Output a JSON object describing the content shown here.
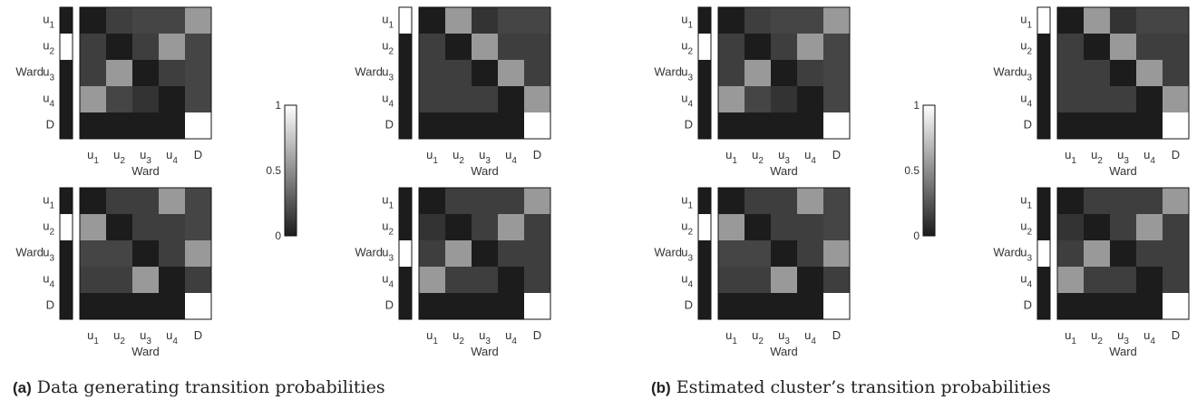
{
  "panel_labels": [
    {
      "tag": "(a)",
      "text": "Data generating transition probabilities"
    },
    {
      "tag": "(b)",
      "text": "Estimated cluster’s transition probabilities"
    }
  ],
  "chart_data": [
    {
      "type": "heatmap",
      "group": "a",
      "ylabel": "Ward",
      "xlabel": "Ward",
      "row_labels": [
        "u1",
        "u2",
        "u3",
        "u4",
        "D"
      ],
      "col_labels": [
        "u1",
        "u2",
        "u3",
        "u4",
        "D"
      ],
      "initial_probabilities": [
        0.0,
        1.0,
        0.0,
        0.0,
        0.0
      ],
      "values": [
        [
          0.0,
          0.15,
          0.18,
          0.18,
          0.55
        ],
        [
          0.15,
          0.0,
          0.15,
          0.55,
          0.18
        ],
        [
          0.15,
          0.55,
          0.0,
          0.15,
          0.18
        ],
        [
          0.55,
          0.18,
          0.1,
          0.0,
          0.18
        ],
        [
          0.0,
          0.0,
          0.0,
          0.0,
          1.0
        ]
      ]
    },
    {
      "type": "heatmap",
      "group": "a",
      "ylabel": "Ward",
      "xlabel": "Ward",
      "row_labels": [
        "u1",
        "u2",
        "u3",
        "u4",
        "D"
      ],
      "col_labels": [
        "u1",
        "u2",
        "u3",
        "u4",
        "D"
      ],
      "initial_probabilities": [
        1.0,
        0.0,
        0.0,
        0.0,
        0.0
      ],
      "values": [
        [
          0.0,
          0.55,
          0.1,
          0.18,
          0.18
        ],
        [
          0.15,
          0.0,
          0.55,
          0.15,
          0.15
        ],
        [
          0.15,
          0.15,
          0.0,
          0.55,
          0.15
        ],
        [
          0.15,
          0.15,
          0.15,
          0.0,
          0.55
        ],
        [
          0.0,
          0.0,
          0.0,
          0.0,
          1.0
        ]
      ]
    },
    {
      "type": "heatmap",
      "group": "a",
      "ylabel": "Ward",
      "xlabel": "Ward",
      "row_labels": [
        "u1",
        "u2",
        "u3",
        "u4",
        "D"
      ],
      "col_labels": [
        "u1",
        "u2",
        "u3",
        "u4",
        "D"
      ],
      "initial_probabilities": [
        0.0,
        1.0,
        0.0,
        0.0,
        0.0
      ],
      "values": [
        [
          0.0,
          0.15,
          0.15,
          0.55,
          0.18
        ],
        [
          0.55,
          0.0,
          0.15,
          0.15,
          0.18
        ],
        [
          0.18,
          0.18,
          0.0,
          0.15,
          0.55
        ],
        [
          0.15,
          0.15,
          0.55,
          0.0,
          0.15
        ],
        [
          0.0,
          0.0,
          0.0,
          0.0,
          1.0
        ]
      ]
    },
    {
      "type": "heatmap",
      "group": "a",
      "ylabel": "Ward",
      "xlabel": "Ward",
      "row_labels": [
        "u1",
        "u2",
        "u3",
        "u4",
        "D"
      ],
      "col_labels": [
        "u1",
        "u2",
        "u3",
        "u4",
        "D"
      ],
      "initial_probabilities": [
        0.0,
        0.0,
        1.0,
        0.0,
        0.0
      ],
      "values": [
        [
          0.0,
          0.15,
          0.15,
          0.15,
          0.55
        ],
        [
          0.1,
          0.0,
          0.15,
          0.55,
          0.15
        ],
        [
          0.15,
          0.55,
          0.0,
          0.15,
          0.15
        ],
        [
          0.55,
          0.15,
          0.15,
          0.0,
          0.15
        ],
        [
          0.0,
          0.0,
          0.0,
          0.0,
          1.0
        ]
      ]
    },
    {
      "type": "heatmap",
      "group": "b",
      "ylabel": "Ward",
      "xlabel": "Ward",
      "row_labels": [
        "u1",
        "u2",
        "u3",
        "u4",
        "D"
      ],
      "col_labels": [
        "u1",
        "u2",
        "u3",
        "u4",
        "D"
      ],
      "initial_probabilities": [
        0.0,
        1.0,
        0.0,
        0.0,
        0.0
      ],
      "values": [
        [
          0.0,
          0.15,
          0.18,
          0.18,
          0.55
        ],
        [
          0.15,
          0.0,
          0.15,
          0.55,
          0.18
        ],
        [
          0.15,
          0.55,
          0.0,
          0.15,
          0.18
        ],
        [
          0.55,
          0.18,
          0.1,
          0.0,
          0.18
        ],
        [
          0.0,
          0.0,
          0.0,
          0.0,
          1.0
        ]
      ]
    },
    {
      "type": "heatmap",
      "group": "b",
      "ylabel": "Ward",
      "xlabel": "Ward",
      "row_labels": [
        "u1",
        "u2",
        "u3",
        "u4",
        "D"
      ],
      "col_labels": [
        "u1",
        "u2",
        "u3",
        "u4",
        "D"
      ],
      "initial_probabilities": [
        1.0,
        0.0,
        0.0,
        0.0,
        0.0
      ],
      "values": [
        [
          0.0,
          0.55,
          0.1,
          0.18,
          0.18
        ],
        [
          0.15,
          0.0,
          0.55,
          0.15,
          0.15
        ],
        [
          0.15,
          0.15,
          0.0,
          0.55,
          0.15
        ],
        [
          0.15,
          0.15,
          0.15,
          0.0,
          0.55
        ],
        [
          0.0,
          0.0,
          0.0,
          0.0,
          1.0
        ]
      ]
    },
    {
      "type": "heatmap",
      "group": "b",
      "ylabel": "Ward",
      "xlabel": "Ward",
      "row_labels": [
        "u1",
        "u2",
        "u3",
        "u4",
        "D"
      ],
      "col_labels": [
        "u1",
        "u2",
        "u3",
        "u4",
        "D"
      ],
      "initial_probabilities": [
        0.0,
        1.0,
        0.0,
        0.0,
        0.0
      ],
      "values": [
        [
          0.0,
          0.15,
          0.15,
          0.55,
          0.18
        ],
        [
          0.55,
          0.0,
          0.15,
          0.15,
          0.18
        ],
        [
          0.18,
          0.18,
          0.0,
          0.15,
          0.55
        ],
        [
          0.15,
          0.15,
          0.55,
          0.0,
          0.15
        ],
        [
          0.0,
          0.0,
          0.0,
          0.0,
          1.0
        ]
      ]
    },
    {
      "type": "heatmap",
      "group": "b",
      "ylabel": "Ward",
      "xlabel": "Ward",
      "row_labels": [
        "u1",
        "u2",
        "u3",
        "u4",
        "D"
      ],
      "col_labels": [
        "u1",
        "u2",
        "u3",
        "u4",
        "D"
      ],
      "initial_probabilities": [
        0.0,
        0.0,
        1.0,
        0.0,
        0.0
      ],
      "values": [
        [
          0.0,
          0.15,
          0.15,
          0.15,
          0.55
        ],
        [
          0.1,
          0.0,
          0.15,
          0.55,
          0.15
        ],
        [
          0.15,
          0.55,
          0.0,
          0.15,
          0.15
        ],
        [
          0.55,
          0.15,
          0.15,
          0.0,
          0.15
        ],
        [
          0.0,
          0.0,
          0.0,
          0.0,
          1.0
        ]
      ]
    }
  ],
  "colorbar": {
    "range": [
      0,
      1
    ],
    "ticks": [
      "1",
      "0.5",
      "0"
    ],
    "colormap": "gray"
  }
}
